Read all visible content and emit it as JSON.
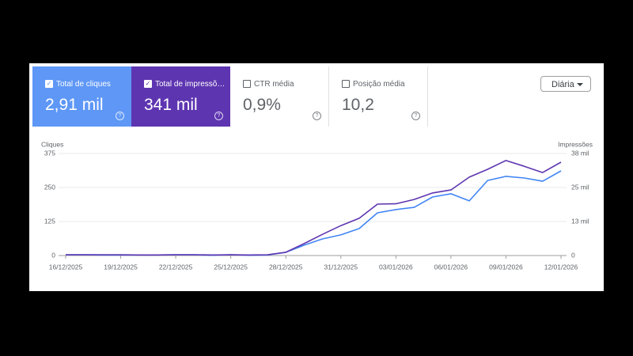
{
  "cards": [
    {
      "label": "Total de cliques",
      "value": "2,91 mil",
      "checked": true
    },
    {
      "label": "Total de impressõ…",
      "value": "341 mil",
      "checked": true
    },
    {
      "label": "CTR média",
      "value": "0,9%",
      "checked": false
    },
    {
      "label": "Posição média",
      "value": "10,2",
      "checked": false
    }
  ],
  "dropdown": "Diária",
  "chart_data": {
    "type": "line",
    "y_label": "Cliques",
    "y2_label": "Impressões",
    "categories": [
      "16/12/2025",
      null,
      null,
      "19/12/2025",
      null,
      null,
      "22/12/2025",
      null,
      null,
      "25/12/2025",
      null,
      null,
      "28/12/2025",
      null,
      null,
      "31/12/2025",
      null,
      null,
      "03/01/2026",
      null,
      null,
      "06/01/2026",
      null,
      null,
      "09/01/2026",
      null,
      null,
      "12/01/2026"
    ],
    "series": [
      {
        "name": "Total de cliques",
        "color": "#4285f4",
        "axis": "y",
        "values": [
          3,
          3,
          2,
          2,
          2,
          2,
          3,
          3,
          1,
          3,
          1,
          2,
          12,
          38,
          61,
          76,
          99,
          157,
          169,
          177,
          215,
          227,
          201,
          276,
          291,
          285,
          273,
          311
        ]
      },
      {
        "name": "Total de impressões",
        "color": "#5e35b1",
        "axis": "y2",
        "values": [
          300,
          300,
          300,
          300,
          200,
          200,
          300,
          300,
          200,
          300,
          200,
          300,
          1200,
          4400,
          7800,
          11000,
          13700,
          18900,
          19000,
          20600,
          23000,
          24100,
          28800,
          31700,
          34900,
          32800,
          30500,
          34300
        ]
      }
    ],
    "ylim": [
      0,
      375
    ],
    "yticks": [
      0,
      125,
      250,
      375
    ],
    "y2lim": [
      0,
      37500
    ],
    "y2ticks": [
      0,
      {
        "value": 12500,
        "label": "13 mil"
      },
      {
        "value": 25000,
        "label": "25 mil"
      },
      {
        "value": 37500,
        "label": "38 mil"
      }
    ],
    "grid": true
  }
}
